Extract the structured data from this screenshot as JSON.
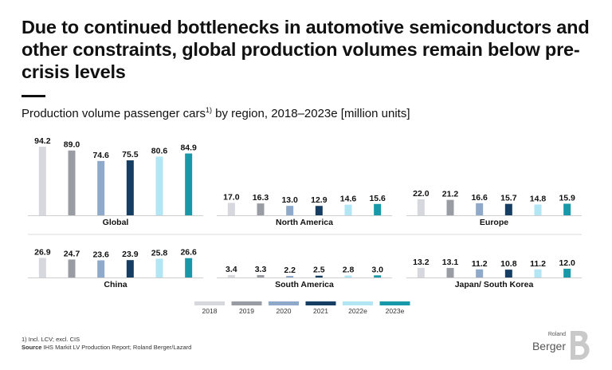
{
  "headline": "Due to continued bottlenecks in automotive semiconductors and other constraints, global production volumes remain below pre-crisis levels",
  "subtitle": {
    "text_main": "Production volume passenger cars",
    "sup": "1)",
    "text_rest": " by region, 2018–2023e [million units]"
  },
  "chart_data": {
    "type": "bar",
    "title": "Production volume passenger cars1) by region, 2018–2023e [million units]",
    "categories": [
      "2018",
      "2019",
      "2020",
      "2021",
      "2022e",
      "2023e"
    ],
    "colors": [
      "#d6d8de",
      "#999ca3",
      "#8ea9ca",
      "#163e62",
      "#b2e6f4",
      "#1799aa"
    ],
    "panels": [
      {
        "name": "Global",
        "values": [
          94.2,
          89.0,
          74.6,
          75.5,
          80.6,
          84.9
        ]
      },
      {
        "name": "North America",
        "values": [
          17.0,
          16.3,
          13.0,
          12.9,
          14.6,
          15.6
        ]
      },
      {
        "name": "Europe",
        "values": [
          22.0,
          21.2,
          16.6,
          15.7,
          14.8,
          15.9
        ]
      },
      {
        "name": "China",
        "values": [
          26.9,
          24.7,
          23.6,
          23.9,
          25.8,
          26.6
        ]
      },
      {
        "name": "South America",
        "values": [
          3.4,
          3.3,
          2.2,
          2.5,
          2.8,
          3.0
        ]
      },
      {
        "name": "Japan/ South Korea",
        "values": [
          13.2,
          13.1,
          11.2,
          10.8,
          11.2,
          12.0
        ]
      }
    ],
    "legend": [
      "2018",
      "2019",
      "2020",
      "2021",
      "2022e",
      "2023e"
    ]
  },
  "footnote": {
    "note": "1) Incl. LCV; excl. CIS",
    "source_label": "Source",
    "source_text": " IHS Markit LV Production Report; Roland Berger/Lazard"
  },
  "logo": {
    "line1": "Roland",
    "line2": "Berger"
  }
}
